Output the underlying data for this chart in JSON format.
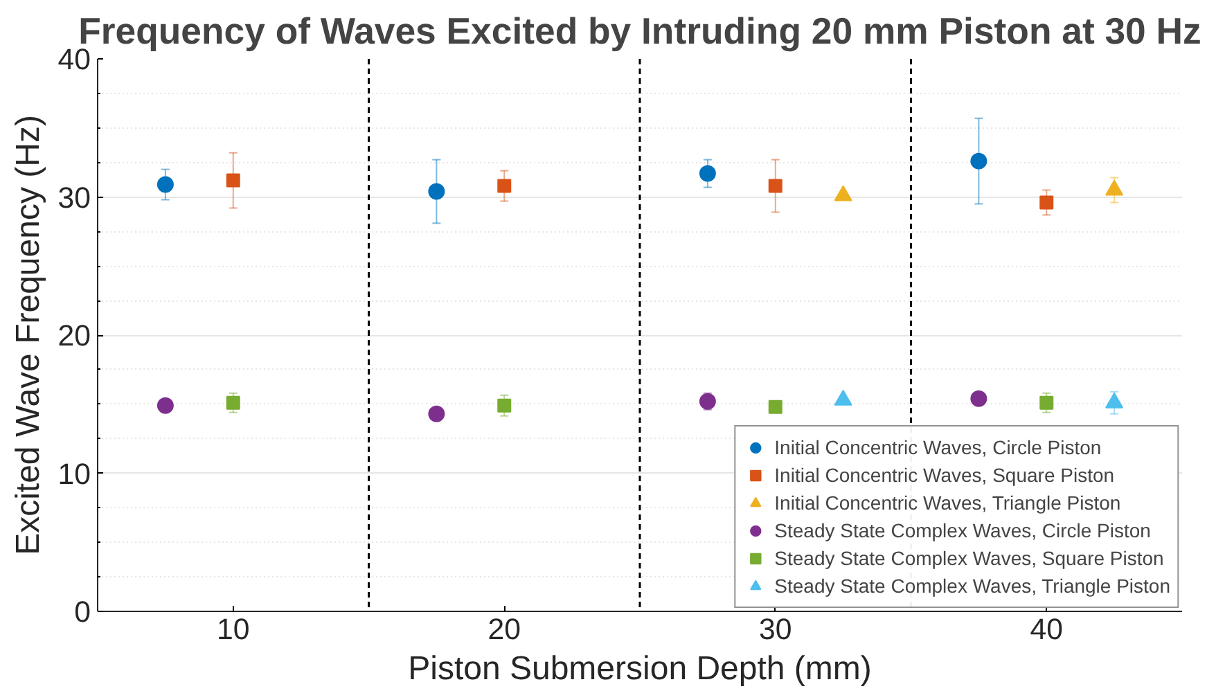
{
  "chart_data": {
    "type": "scatter",
    "title": "Frequency of Waves Excited by Intruding 20 mm Piston at 30 Hz",
    "xlabel": "Piston Submersion Depth (mm)",
    "ylabel": "Excited Wave Frequency (Hz)",
    "xlim": [
      5,
      45
    ],
    "xticks": [
      10,
      20,
      30,
      40
    ],
    "ylim": [
      0,
      40
    ],
    "yticks": [
      0,
      {
        "value": 2.5,
        "label": null
      },
      {
        "value": 5,
        "label": null
      },
      {
        "value": 7.5,
        "label": null
      },
      10,
      {
        "value": 12.5,
        "label": null
      },
      {
        "value": 15,
        "label": null
      },
      {
        "value": 17.5,
        "label": null
      },
      20,
      {
        "value": 22.5,
        "label": null
      },
      {
        "value": 25,
        "label": null
      },
      {
        "value": 27.5,
        "label": null
      },
      30,
      {
        "value": 32.5,
        "label": null
      },
      {
        "value": 35,
        "label": null
      },
      {
        "value": 37.5,
        "label": null
      },
      40
    ],
    "grid": "y",
    "legend": "bottom right",
    "ref_lines": [
      {
        "axis": "x",
        "value": 15,
        "color": "#000000",
        "line_style": "dashed"
      },
      {
        "axis": "x",
        "value": 25,
        "color": "#000000",
        "line_style": "dashed"
      },
      {
        "axis": "x",
        "value": 35,
        "color": "#000000",
        "line_style": "dashed"
      }
    ],
    "series": [
      {
        "name": "Initial Concentric Waves, Circle Piston",
        "color": "#0072bd",
        "marker": "circle",
        "x": [
          7.5,
          17.5,
          27.5,
          37.5
        ],
        "values": [
          30.9,
          30.4,
          31.7,
          32.6
        ],
        "errors": [
          1.1,
          2.3,
          1.0,
          3.1
        ]
      },
      {
        "name": "Initial Concentric Waves, Square Piston",
        "color": "#d95319",
        "marker": "square",
        "x": [
          10,
          20,
          30,
          40
        ],
        "values": [
          31.2,
          30.8,
          30.8,
          29.6
        ],
        "errors": [
          2.0,
          1.1,
          1.9,
          0.9
        ]
      },
      {
        "name": "Initial Concentric Waves, Triangle Piston",
        "color": "#edb120",
        "marker": "triangle",
        "x": [
          32.5,
          42.5
        ],
        "values": [
          30.1,
          30.5
        ],
        "errors": [
          null,
          0.9
        ]
      },
      {
        "name": "Steady State Complex Waves, Circle Piston",
        "color": "#7e2f8e",
        "marker": "circle",
        "x": [
          7.5,
          17.5,
          27.5,
          37.5
        ],
        "values": [
          14.9,
          14.3,
          15.2,
          15.4
        ],
        "errors": [
          null,
          null,
          0.6,
          null
        ]
      },
      {
        "name": "Steady State Complex Waves, Square Piston",
        "color": "#77ac30",
        "marker": "square",
        "x": [
          10,
          20,
          30,
          40
        ],
        "values": [
          15.1,
          14.9,
          14.8,
          15.1
        ],
        "errors": [
          0.7,
          0.75,
          0.4,
          0.7
        ]
      },
      {
        "name": "Steady State Complex Waves, Triangle Piston",
        "color": "#4dbeee",
        "marker": "triangle",
        "x": [
          32.5,
          42.5
        ],
        "values": [
          15.3,
          15.1
        ],
        "errors": [
          null,
          0.8
        ]
      }
    ]
  }
}
